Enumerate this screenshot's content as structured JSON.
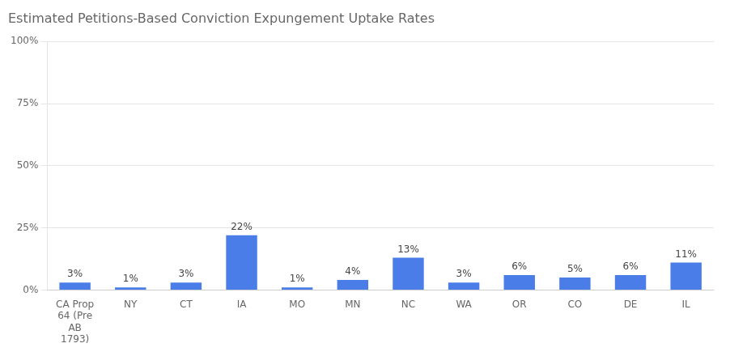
{
  "chart_data": {
    "type": "bar",
    "title": "Estimated Petitions-Based Conviction Expungement Uptake Rates",
    "categories": [
      "CA Prop\n64 (Pre\nAB\n1793)",
      "NY",
      "CT",
      "IA",
      "MO",
      "MN",
      "NC",
      "WA",
      "OR",
      "CO",
      "DE",
      "IL"
    ],
    "values": [
      3,
      1,
      3,
      22,
      1,
      4,
      13,
      3,
      6,
      5,
      6,
      11
    ],
    "value_labels": [
      "3%",
      "1%",
      "3%",
      "22%",
      "1%",
      "4%",
      "13%",
      "3%",
      "6%",
      "5%",
      "6%",
      "11%"
    ],
    "color": "#4a7de8",
    "ylim": [
      0,
      100
    ],
    "yticks": [
      {
        "value": 0,
        "label": "0%"
      },
      {
        "value": 25,
        "label": "25%"
      },
      {
        "value": 50,
        "label": "50%"
      },
      {
        "value": 75,
        "label": "75%"
      },
      {
        "value": 100,
        "label": "100%"
      }
    ],
    "grid": true,
    "data_labels": true
  }
}
